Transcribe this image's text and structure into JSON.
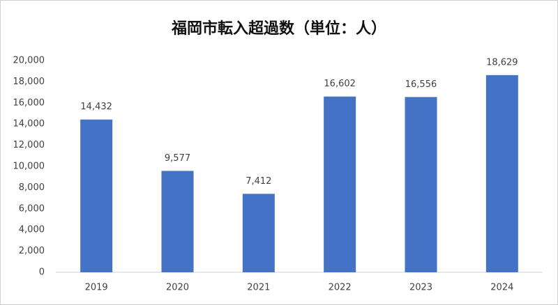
{
  "chart_data": {
    "type": "bar",
    "title": "福岡市転入超過数（単位：人）",
    "categories": [
      "2019",
      "2020",
      "2021",
      "2022",
      "2023",
      "2024"
    ],
    "values": [
      14432,
      9577,
      7412,
      16602,
      16556,
      18629
    ],
    "value_labels": [
      "14,432",
      "9,577",
      "7,412",
      "16,602",
      "16,556",
      "18,629"
    ],
    "color": "#4472c4",
    "ylim": [
      0,
      20000
    ],
    "yticks": [
      0,
      {
        "value": 2000,
        "label": "2,000"
      },
      {
        "value": 4000,
        "label": "4,000"
      },
      {
        "value": 6000,
        "label": "6,000"
      },
      {
        "value": 8000,
        "label": "8,000"
      },
      {
        "value": 10000,
        "label": "10,000"
      },
      {
        "value": 12000,
        "label": "12,000"
      },
      {
        "value": 14000,
        "label": "14,000"
      },
      {
        "value": 16000,
        "label": "16,000"
      },
      {
        "value": 18000,
        "label": "18,000"
      },
      {
        "value": 20000,
        "label": "20,000"
      }
    ],
    "grid": false
  }
}
